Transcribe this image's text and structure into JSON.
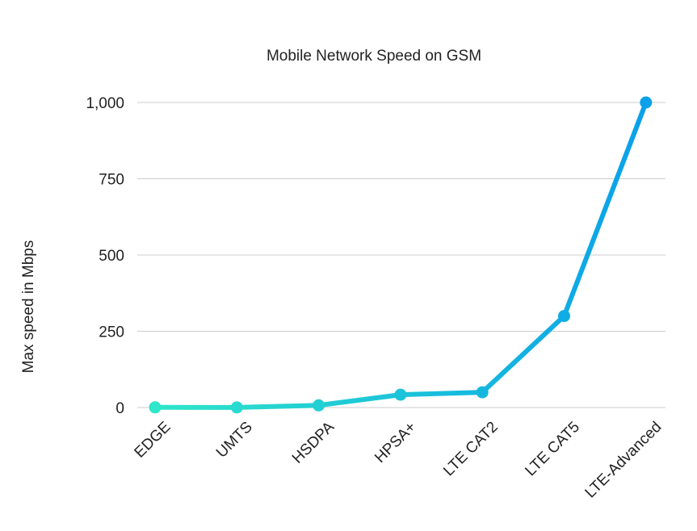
{
  "chart_data": {
    "type": "line",
    "title": "Mobile Network Speed on GSM",
    "xlabel": "",
    "ylabel": "Max speed in Mbps",
    "categories": [
      "EDGE",
      "UMTS",
      "HSDPA",
      "HPSA+",
      "LTE CAT2",
      "LTE CAT5",
      "LTE-Advanced"
    ],
    "series": [
      {
        "values": [
          0.5,
          0.4,
          7.2,
          42,
          50,
          300,
          1000
        ]
      }
    ],
    "ylim": [
      0,
      1000
    ],
    "yticks": [
      0,
      250,
      500,
      750,
      1000
    ],
    "ytick_labels": [
      "0",
      "250",
      "500",
      "750",
      "1,000"
    ],
    "grid": true,
    "legend": "none",
    "gradient_colors": [
      "#2ee6c9",
      "#0aa0ea"
    ]
  }
}
